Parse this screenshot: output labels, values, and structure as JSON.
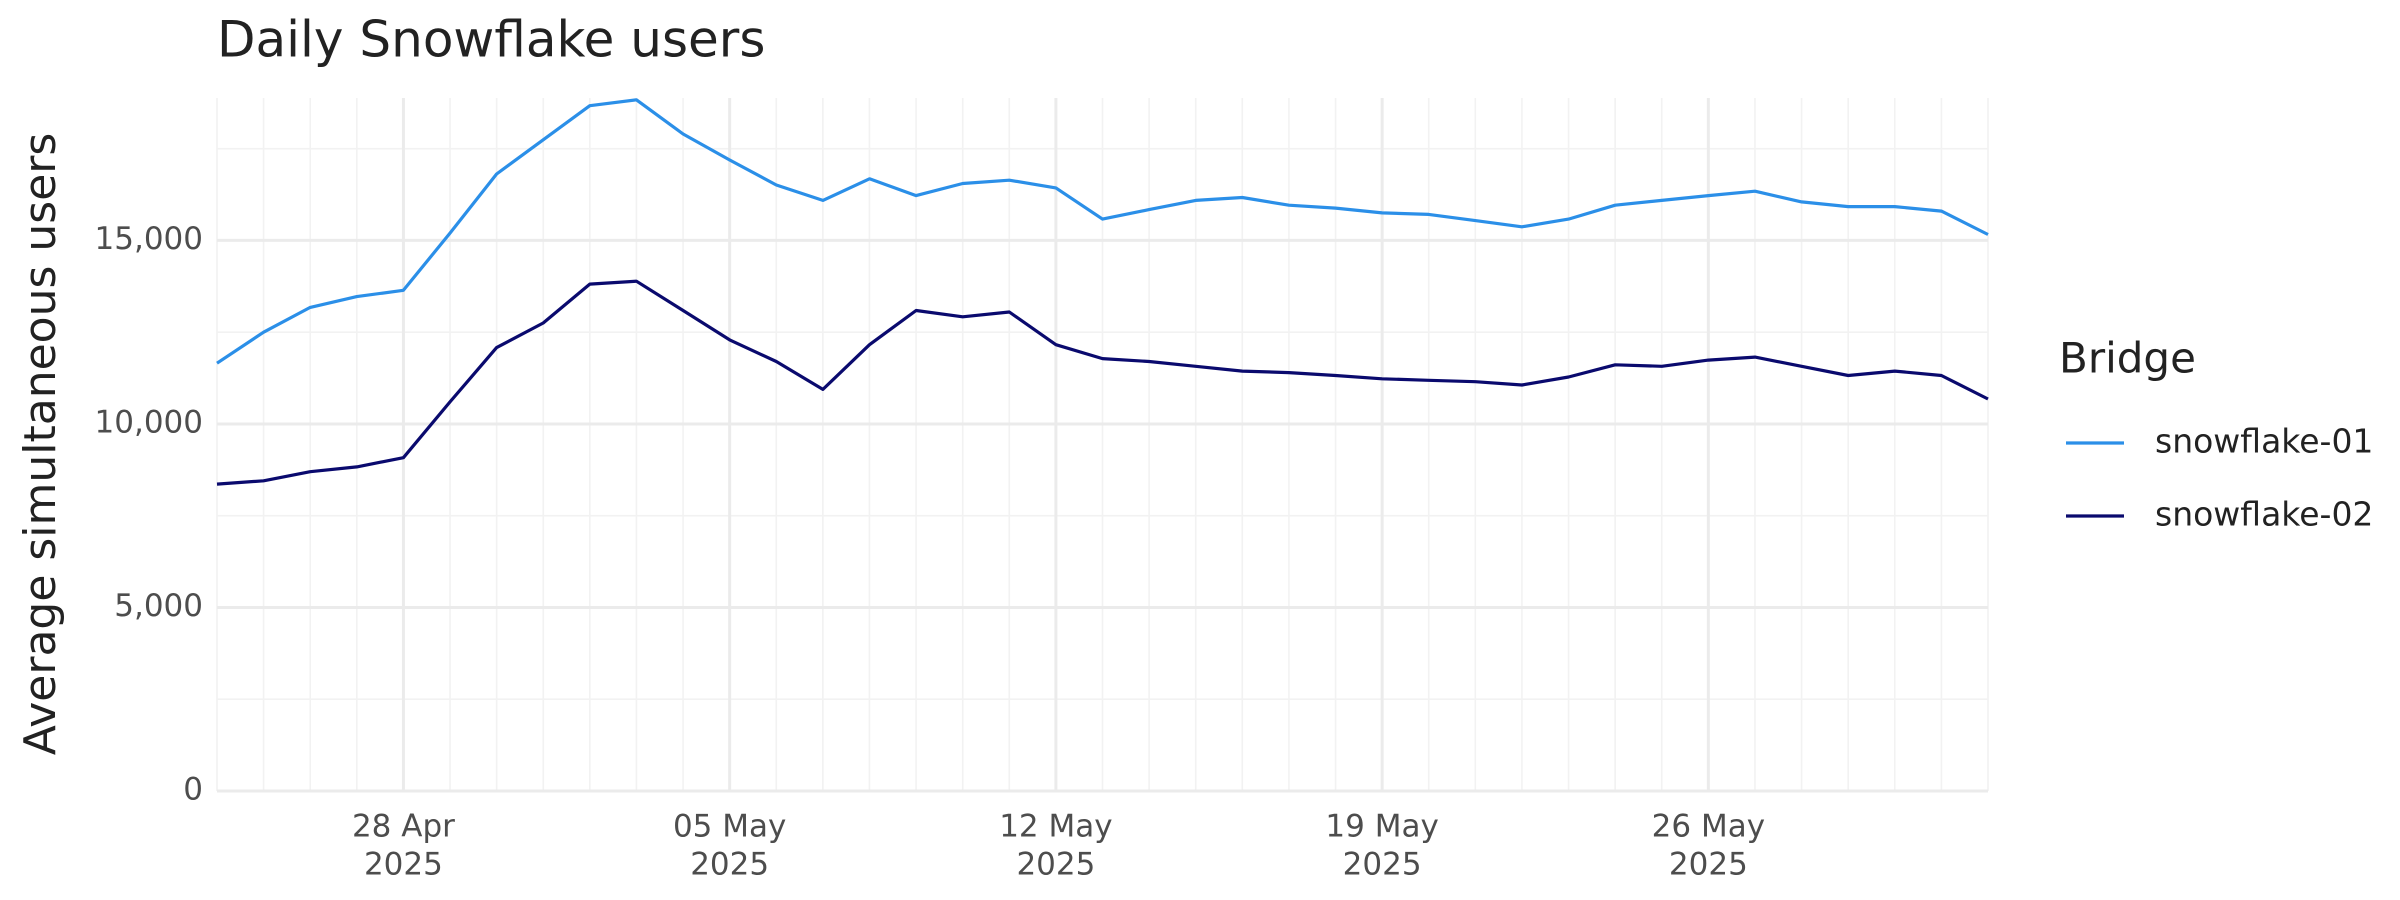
{
  "chart_data": {
    "type": "line",
    "title": "Daily Snowflake users",
    "y_label": "Average simultaneous users",
    "legend_title": "Bridge",
    "legend": "right",
    "grid": true,
    "x": [
      "2025-04-24",
      "2025-04-25",
      "2025-04-26",
      "2025-04-27",
      "2025-04-28",
      "2025-04-29",
      "2025-04-30",
      "2025-05-01",
      "2025-05-02",
      "2025-05-03",
      "2025-05-04",
      "2025-05-05",
      "2025-05-06",
      "2025-05-07",
      "2025-05-08",
      "2025-05-09",
      "2025-05-10",
      "2025-05-11",
      "2025-05-12",
      "2025-05-13",
      "2025-05-14",
      "2025-05-15",
      "2025-05-16",
      "2025-05-17",
      "2025-05-18",
      "2025-05-19",
      "2025-05-20",
      "2025-05-21",
      "2025-05-22",
      "2025-05-23",
      "2025-05-24",
      "2025-05-25",
      "2025-05-26",
      "2025-05-27",
      "2025-05-28",
      "2025-05-29",
      "2025-05-30",
      "2025-05-31",
      "2025-06-01"
    ],
    "xlim": [
      "2025-04-24",
      "2025-06-01"
    ],
    "xticks": [
      {
        "value": "2025-04-28",
        "label": [
          "28 Apr",
          "2025"
        ]
      },
      {
        "value": "2025-05-05",
        "label": [
          "05 May",
          "2025"
        ]
      },
      {
        "value": "2025-05-12",
        "label": [
          "12 May",
          "2025"
        ]
      },
      {
        "value": "2025-05-19",
        "label": [
          "19 May",
          "2025"
        ]
      },
      {
        "value": "2025-05-26",
        "label": [
          "26 May",
          "2025"
        ]
      }
    ],
    "ylim": [
      0,
      18880
    ],
    "yticks": [
      0,
      {
        "value": 5000,
        "label": "5,000"
      },
      {
        "value": 10000,
        "label": "10,000"
      },
      {
        "value": 15000,
        "label": "15,000"
      }
    ],
    "series": [
      {
        "name": "snowflake-01",
        "color": "#2b8fe8",
        "values": [
          11655,
          12500,
          13175,
          13470,
          13640,
          15200,
          16810,
          17740,
          18670,
          18830,
          17900,
          17190,
          16510,
          16090,
          16680,
          16220,
          16550,
          16640,
          16430,
          15580,
          15840,
          16090,
          16170,
          15960,
          15880,
          15750,
          15710,
          15540,
          15370,
          15580,
          15960,
          16090,
          16220,
          16340,
          16050,
          15920,
          15920,
          15800,
          15160
        ]
      },
      {
        "name": "snowflake-02",
        "color": "#0a0a6e",
        "values": [
          8360,
          8450,
          8700,
          8830,
          9080,
          10600,
          12080,
          12750,
          13810,
          13890,
          13090,
          12290,
          11700,
          10940,
          12160,
          13090,
          12920,
          13050,
          12160,
          11780,
          11700,
          11570,
          11440,
          11400,
          11320,
          11230,
          11190,
          11150,
          11060,
          11280,
          11610,
          11570,
          11740,
          11820,
          11570,
          11320,
          11440,
          11320,
          10680
        ]
      }
    ]
  }
}
